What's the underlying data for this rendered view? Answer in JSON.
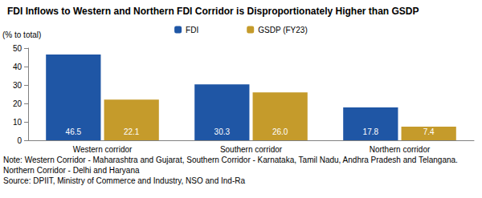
{
  "chart_data": {
    "type": "bar",
    "title": "FDI Inflows to Western and Northern FDI Corridor is Disproportionately Higher than GSDP",
    "y_label": "(% to total)",
    "categories": [
      "Western corridor",
      "Southern corridor",
      "Northern corridor"
    ],
    "series": [
      {
        "name": "FDI",
        "color": "#1f56a5",
        "values": [
          46.5,
          30.3,
          17.8
        ]
      },
      {
        "name": "GSDP (FY23)",
        "color": "#c59b2b",
        "values": [
          22.1,
          26.0,
          7.4
        ],
        "value_labels": [
          "22.1",
          "26.0",
          "7.4"
        ]
      }
    ],
    "ylim": [
      0,
      50
    ],
    "yticks": [
      0,
      10,
      20,
      30,
      40,
      50
    ],
    "grid": false,
    "legend": "top",
    "data_labels": true,
    "note": "Note: Western Corridor - Maharashtra and Gujarat, Southern Corridor - Karnataka, Tamil Nadu, Andhra Pradesh and Telangana. Northern Corridor - Delhi and Haryana",
    "source": "Source: DPIIT, Ministry of Commerce and Industry, NSO and Ind-Ra"
  }
}
